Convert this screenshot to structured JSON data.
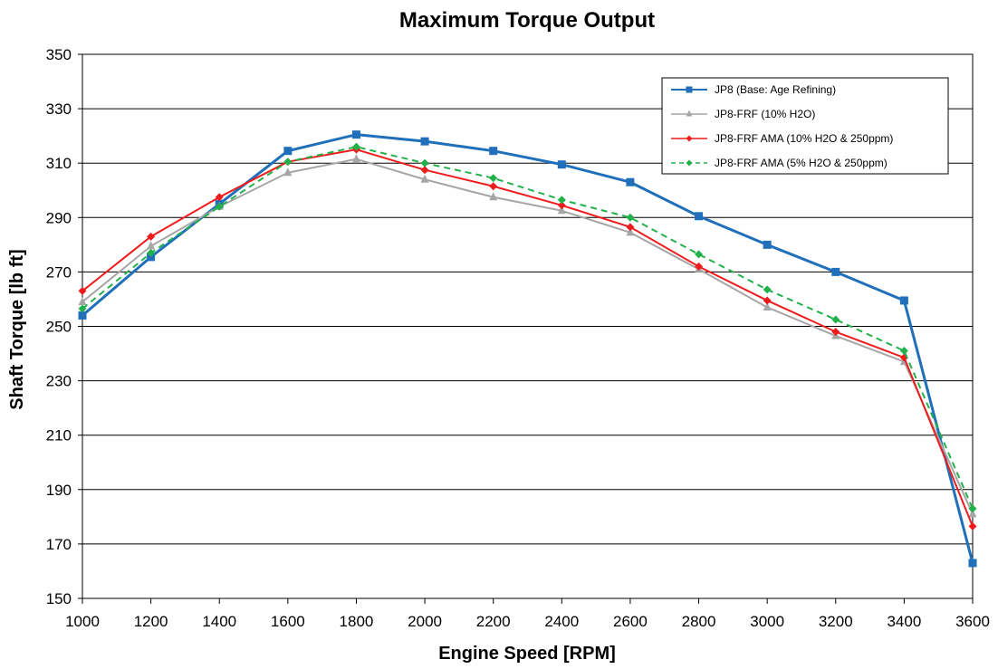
{
  "chart_data": {
    "type": "line",
    "title": "Maximum Torque Output",
    "xlabel": "Engine Speed [RPM]",
    "ylabel": "Shaft Torque [lb ft]",
    "xlim": [
      1000,
      3600
    ],
    "ylim": [
      150,
      350
    ],
    "xticks": [
      1000,
      1200,
      1400,
      1600,
      1800,
      2000,
      2200,
      2400,
      2600,
      2800,
      3000,
      3200,
      3400,
      3600
    ],
    "yticks": [
      150,
      170,
      190,
      210,
      230,
      250,
      270,
      290,
      310,
      330,
      350
    ],
    "grid": "horizontal",
    "legend_position": "top-right",
    "series": [
      {
        "name": "JP8 (Base: Age Refining)",
        "color": "#1f6fba",
        "marker": "square",
        "dash": "solid",
        "x": [
          1000,
          1200,
          1400,
          1600,
          1800,
          2000,
          2200,
          2400,
          2600,
          2800,
          3000,
          3200,
          3400,
          3600
        ],
        "values": [
          254,
          275.5,
          295,
          314.5,
          320.5,
          318,
          314.5,
          309.5,
          303,
          290.5,
          280,
          270,
          259.5,
          163
        ]
      },
      {
        "name": "JP8-FRF (10% H2O)",
        "color": "#a6a6a6",
        "marker": "triangle",
        "dash": "solid",
        "x": [
          1000,
          1200,
          1400,
          1600,
          1800,
          2000,
          2200,
          2400,
          2600,
          2800,
          3000,
          3200,
          3400,
          3600
        ],
        "values": [
          259,
          279.5,
          294,
          306.5,
          311.5,
          304,
          297.5,
          292.5,
          284.5,
          271,
          257,
          246.5,
          237,
          181
        ]
      },
      {
        "name": "JP8-FRF AMA  (10% H2O & 250ppm)",
        "color": "#ee1c1c",
        "marker": "diamond",
        "dash": "solid",
        "x": [
          1000,
          1200,
          1400,
          1600,
          1800,
          2000,
          2200,
          2400,
          2600,
          2800,
          3000,
          3200,
          3400,
          3600
        ],
        "values": [
          263,
          283,
          297.5,
          310.5,
          315,
          307.5,
          301.5,
          294.5,
          286.5,
          272,
          259.5,
          248,
          238.5,
          176.5
        ]
      },
      {
        "name": "JP8-FRF AMA  (5% H2O & 250ppm)",
        "color": "#22b04b",
        "marker": "diamond",
        "dash": "dashed",
        "x": [
          1000,
          1200,
          1400,
          1600,
          1800,
          2000,
          2200,
          2400,
          2600,
          2800,
          3000,
          3200,
          3400,
          3600
        ],
        "values": [
          256.5,
          277,
          294,
          310.5,
          316,
          310,
          304.5,
          296.5,
          290,
          276.5,
          263.5,
          252.5,
          241,
          183
        ]
      }
    ]
  }
}
